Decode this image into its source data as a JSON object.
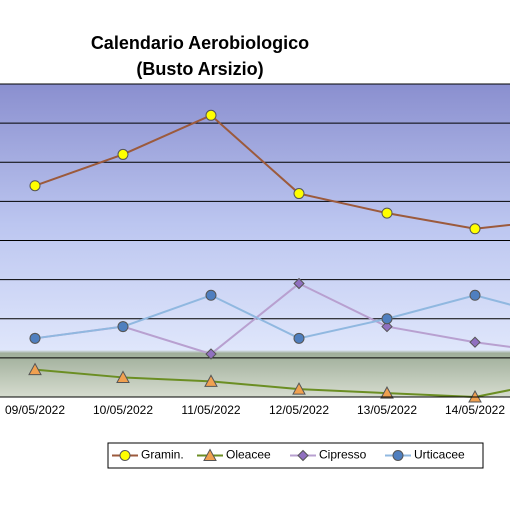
{
  "chart_data": {
    "type": "line",
    "title": "Calendario Aerobiologico",
    "subtitle": "(Busto Arsizio)",
    "categories": [
      "09/05/2022",
      "10/05/2022",
      "11/05/2022",
      "12/05/2022",
      "13/05/2022",
      "14/05/2022",
      null
    ],
    "series": [
      {
        "name": "Gramin.",
        "color": "#9c5a3c",
        "marker": "circle",
        "marker_color": "#ffff00",
        "values": [
          5.4,
          6.2,
          7.2,
          5.2,
          4.7,
          4.3,
          4.55
        ]
      },
      {
        "name": "Oleacee",
        "color": "#6b8e23",
        "marker": "triangle",
        "marker_color": "#f0a050",
        "values": [
          0.7,
          0.5,
          0.4,
          0.2,
          0.1,
          0,
          0.45
        ]
      },
      {
        "name": "Cipresso",
        "color": "#b8a0d0",
        "marker": "diamond",
        "marker_color": "#9070c0",
        "values": [
          1.5,
          1.8,
          1.1,
          2.9,
          1.8,
          1.4,
          1.1
        ]
      },
      {
        "name": "Urticacee",
        "color": "#90b8e0",
        "marker": "circle",
        "marker_color": "#4f7fbf",
        "values": [
          1.5,
          1.8,
          2.6,
          1.5,
          2.0,
          2.6,
          2.0
        ]
      }
    ],
    "ylim": [
      0,
      8
    ],
    "yticks": [
      0,
      1,
      2,
      3,
      4,
      5,
      6,
      7,
      8
    ],
    "grid": true
  }
}
